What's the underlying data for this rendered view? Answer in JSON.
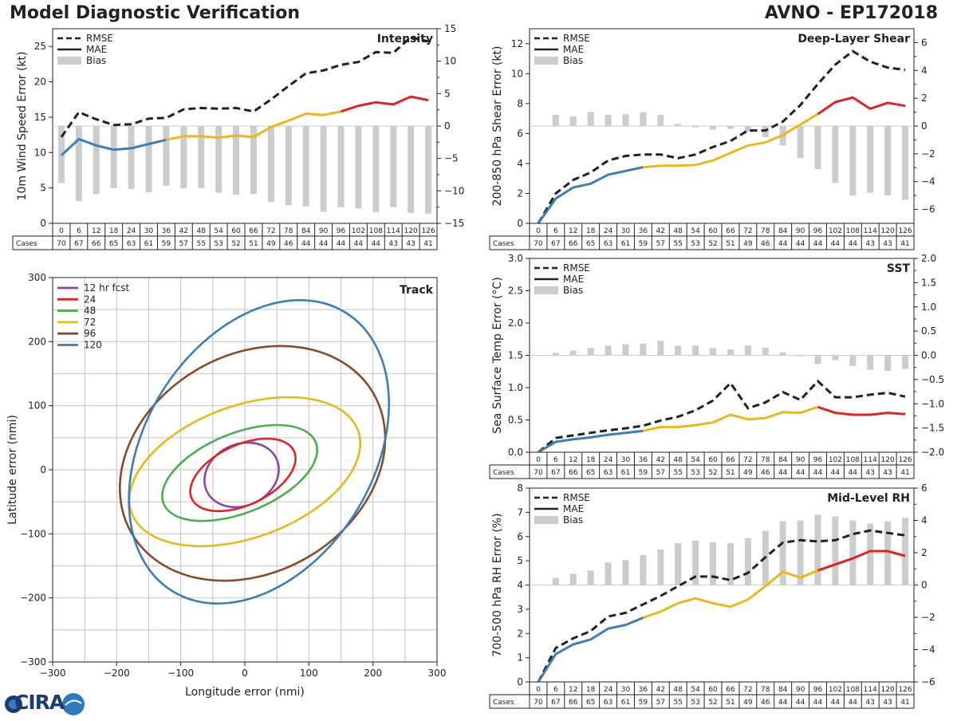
{
  "header": {
    "title_left": "Model Diagnostic Verification",
    "title_right": "AVNO - EP172018"
  },
  "logo": {
    "text": "CIRA",
    "colors": {
      "primary": "#1c3b74",
      "accent": "#2b7bbd"
    }
  },
  "colors": {
    "rmse": "#222222",
    "bias": "#cccccc",
    "segment_blue": "#3b7fb6",
    "segment_yellow": "#e8b820",
    "segment_red": "#dc2626",
    "grid": "#cccccc"
  },
  "chart_data": [
    {
      "type": "line",
      "id": "intensity",
      "title": "Intensity",
      "ylabel": "10m Wind Speed Error (kt)",
      "ylim": [
        0,
        27.5
      ],
      "yticks": [
        0,
        5,
        10,
        15,
        20,
        25
      ],
      "y2lim": [
        -15,
        15
      ],
      "y2ticks": [
        -15,
        -10,
        -5,
        0,
        5,
        10,
        15
      ],
      "legend": [
        "RMSE",
        "MAE",
        "Bias"
      ],
      "x": [
        0,
        6,
        12,
        18,
        24,
        30,
        36,
        42,
        48,
        54,
        60,
        66,
        72,
        78,
        84,
        90,
        96,
        102,
        108,
        114,
        120,
        126
      ],
      "rmse": [
        12.2,
        15.7,
        14.7,
        13.9,
        14.0,
        14.8,
        14.9,
        16.1,
        16.3,
        16.2,
        16.3,
        15.8,
        17.5,
        19.4,
        21.2,
        21.6,
        22.4,
        22.8,
        24.2,
        24.1,
        26.3,
        25.7
      ],
      "mae": [
        9.6,
        11.9,
        11.0,
        10.4,
        10.6,
        11.2,
        11.8,
        12.3,
        12.3,
        12.1,
        12.4,
        12.2,
        13.6,
        14.5,
        15.5,
        15.3,
        15.8,
        16.6,
        17.1,
        16.8,
        17.9,
        17.4
      ],
      "bias": [
        -8.8,
        -11.6,
        -10.5,
        -9.6,
        -9.7,
        -10.2,
        -9.2,
        -9.6,
        -9.6,
        -10.3,
        -10.6,
        -10.5,
        -11.7,
        -12.2,
        -12.4,
        -13.2,
        -12.5,
        -12.7,
        -13.3,
        -12.5,
        -13.4,
        -13.5
      ],
      "cases_label": "Cases",
      "cases": [
        70,
        67,
        66,
        65,
        63,
        61,
        59,
        57,
        55,
        53,
        52,
        51,
        49,
        46,
        44,
        44,
        44,
        44,
        44,
        43,
        43,
        41
      ]
    },
    {
      "type": "line",
      "id": "shear",
      "title": "Deep-Layer Shear",
      "ylabel": "200-850 hPa Shear Error (kt)",
      "ylim": [
        0,
        13
      ],
      "yticks": [
        0,
        2,
        4,
        6,
        8,
        10,
        12
      ],
      "y2lim": [
        -7,
        7
      ],
      "y2ticks": [
        -6,
        -4,
        -2,
        0,
        2,
        4,
        6
      ],
      "legend": [
        "RMSE",
        "MAE",
        "Bias"
      ],
      "x": [
        0,
        6,
        12,
        18,
        24,
        30,
        36,
        42,
        48,
        54,
        60,
        66,
        72,
        78,
        84,
        90,
        96,
        102,
        108,
        114,
        120,
        126
      ],
      "rmse": [
        0.0,
        2.0,
        2.9,
        3.4,
        4.2,
        4.5,
        4.6,
        4.6,
        4.35,
        4.6,
        5.1,
        5.5,
        6.2,
        6.2,
        6.8,
        7.9,
        9.3,
        10.6,
        11.5,
        10.8,
        10.4,
        10.25
      ],
      "mae": [
        0.0,
        1.65,
        2.4,
        2.65,
        3.25,
        3.5,
        3.75,
        3.85,
        3.85,
        3.9,
        4.2,
        4.7,
        5.2,
        5.4,
        5.9,
        6.6,
        7.3,
        8.1,
        8.4,
        7.65,
        8.05,
        7.85
      ],
      "bias": [
        0,
        0.8,
        0.7,
        1.0,
        0.8,
        0.85,
        1.0,
        0.8,
        0.15,
        -0.1,
        -0.25,
        -0.2,
        -0.4,
        -0.8,
        -1.4,
        -2.3,
        -3.1,
        -4.1,
        -5.0,
        -4.8,
        -5.0,
        -5.3
      ],
      "cases_label": "Cases",
      "cases": [
        70,
        67,
        66,
        65,
        63,
        61,
        59,
        57,
        55,
        53,
        52,
        51,
        49,
        46,
        44,
        44,
        44,
        44,
        44,
        43,
        43,
        41
      ]
    },
    {
      "type": "line",
      "id": "sst",
      "title": "SST",
      "ylabel": "Sea Surface Temp Error (°C)",
      "ylim": [
        0,
        3.0
      ],
      "yticks": [
        0.0,
        0.5,
        1.0,
        1.5,
        2.0,
        2.5,
        3.0
      ],
      "y2lim": [
        -2.0,
        2.0
      ],
      "y2ticks": [
        -2.0,
        -1.5,
        -1.0,
        -0.5,
        0.0,
        0.5,
        1.0,
        1.5,
        2.0
      ],
      "legend": [
        "RMSE",
        "MAE",
        "Bias"
      ],
      "x": [
        0,
        6,
        12,
        18,
        24,
        30,
        36,
        42,
        48,
        54,
        60,
        66,
        72,
        78,
        84,
        90,
        96,
        102,
        108,
        114,
        120,
        126
      ],
      "rmse": [
        0.0,
        0.22,
        0.26,
        0.3,
        0.34,
        0.37,
        0.41,
        0.49,
        0.55,
        0.65,
        0.8,
        1.07,
        0.68,
        0.77,
        0.93,
        0.81,
        1.1,
        0.85,
        0.85,
        0.89,
        0.92,
        0.86
      ],
      "mae": [
        0.0,
        0.16,
        0.2,
        0.23,
        0.27,
        0.3,
        0.33,
        0.39,
        0.39,
        0.42,
        0.46,
        0.58,
        0.51,
        0.53,
        0.62,
        0.61,
        0.7,
        0.61,
        0.58,
        0.58,
        0.61,
        0.59
      ],
      "bias": [
        0,
        0.05,
        0.1,
        0.15,
        0.2,
        0.23,
        0.24,
        0.3,
        0.2,
        0.2,
        0.15,
        0.12,
        0.2,
        0.16,
        0.06,
        -0.02,
        -0.18,
        -0.1,
        -0.22,
        -0.3,
        -0.32,
        -0.28
      ],
      "cases_label": "Cases",
      "cases": [
        70,
        67,
        66,
        65,
        63,
        61,
        59,
        57,
        55,
        53,
        52,
        51,
        49,
        46,
        44,
        44,
        44,
        44,
        44,
        43,
        43,
        41
      ]
    },
    {
      "type": "line",
      "id": "rh",
      "title": "Mid-Level RH",
      "ylabel": "700-500 hPa RH Error (%)",
      "ylim": [
        0,
        8
      ],
      "yticks": [
        0,
        1,
        2,
        3,
        4,
        5,
        6,
        7,
        8
      ],
      "y2lim": [
        -6,
        6
      ],
      "y2ticks": [
        -6,
        -4,
        -2,
        0,
        2,
        4,
        6
      ],
      "legend": [
        "RMSE",
        "MAE",
        "Bias"
      ],
      "x": [
        0,
        6,
        12,
        18,
        24,
        30,
        36,
        42,
        48,
        54,
        60,
        66,
        72,
        78,
        84,
        90,
        96,
        102,
        108,
        114,
        120,
        126
      ],
      "rmse": [
        0.0,
        1.4,
        1.8,
        2.1,
        2.7,
        2.85,
        3.2,
        3.55,
        3.95,
        4.35,
        4.35,
        4.2,
        4.5,
        5.15,
        5.75,
        5.85,
        5.8,
        5.85,
        6.1,
        6.25,
        6.15,
        6.05
      ],
      "mae": [
        0.0,
        1.15,
        1.55,
        1.75,
        2.2,
        2.35,
        2.65,
        2.9,
        3.25,
        3.45,
        3.25,
        3.1,
        3.4,
        3.95,
        4.55,
        4.3,
        4.6,
        4.85,
        5.1,
        5.4,
        5.4,
        5.2
      ],
      "bias": [
        0,
        0.45,
        0.7,
        0.9,
        1.4,
        1.55,
        1.85,
        2.2,
        2.6,
        2.75,
        2.65,
        2.6,
        2.9,
        3.35,
        3.95,
        4.0,
        4.35,
        4.25,
        4.0,
        3.8,
        3.95,
        4.15
      ],
      "cases_label": "Cases",
      "cases": [
        70,
        67,
        66,
        65,
        63,
        61,
        59,
        57,
        55,
        53,
        52,
        51,
        49,
        46,
        44,
        44,
        44,
        44,
        44,
        43,
        43,
        41
      ]
    },
    {
      "type": "scatter",
      "id": "track",
      "title": "Track",
      "xlabel": "Longitude error (nmi)",
      "ylabel": "Latitude error (nmi)",
      "xlim": [
        -300,
        300
      ],
      "ylim": [
        -300,
        300
      ],
      "xticks": [
        -300,
        -200,
        -100,
        0,
        100,
        200,
        300
      ],
      "yticks": [
        -300,
        -200,
        -100,
        0,
        100,
        200,
        300
      ],
      "ellipses": [
        {
          "label": "12 hr fcst",
          "color": "#8e44ad",
          "cx": -5,
          "cy": -8,
          "rx": 60,
          "ry": 48,
          "angle": 25
        },
        {
          "label": "24",
          "color": "#dc2626",
          "cx": -3,
          "cy": -8,
          "rx": 88,
          "ry": 47,
          "angle": 25
        },
        {
          "label": "48",
          "color": "#4cae4c",
          "cx": -8,
          "cy": -5,
          "rx": 128,
          "ry": 62,
          "angle": 22
        },
        {
          "label": "72",
          "color": "#e8b820",
          "cx": 0,
          "cy": -3,
          "rx": 188,
          "ry": 103,
          "angle": 20
        },
        {
          "label": "96",
          "color": "#8b4a26",
          "cx": 12,
          "cy": 10,
          "rx": 218,
          "ry": 170,
          "angle": 30
        },
        {
          "label": "120",
          "color": "#3b7fb6",
          "cx": 22,
          "cy": 28,
          "rx": 256,
          "ry": 178,
          "angle": 58
        }
      ]
    }
  ]
}
